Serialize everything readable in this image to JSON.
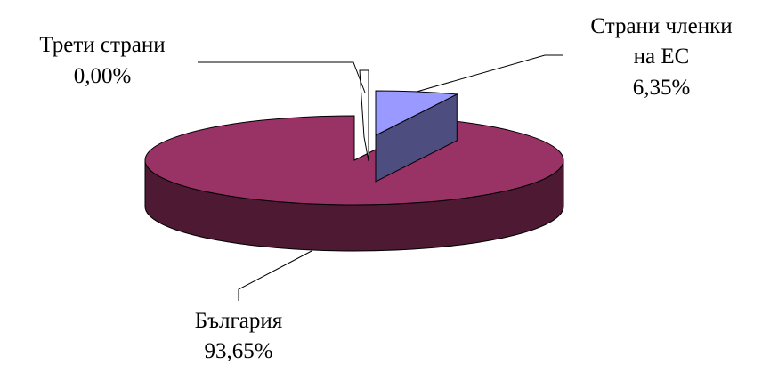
{
  "chart_data": {
    "type": "pie",
    "style": "3d-exploded",
    "slices": [
      {
        "label": "България",
        "value": 93.65,
        "value_label": "93,65%",
        "color": "#993366",
        "side_color": "#4d1933"
      },
      {
        "label": "Трети страни",
        "value": 0.0,
        "value_label": "0,00%",
        "color": "#ffffff",
        "side_color": "#ffffff"
      },
      {
        "label_lines": [
          "Страни членки",
          "на ЕС"
        ],
        "value": 6.35,
        "value_label": "6,35%",
        "color": "#9999ff",
        "side_color": "#4d4d80"
      }
    ],
    "legend": "none"
  }
}
